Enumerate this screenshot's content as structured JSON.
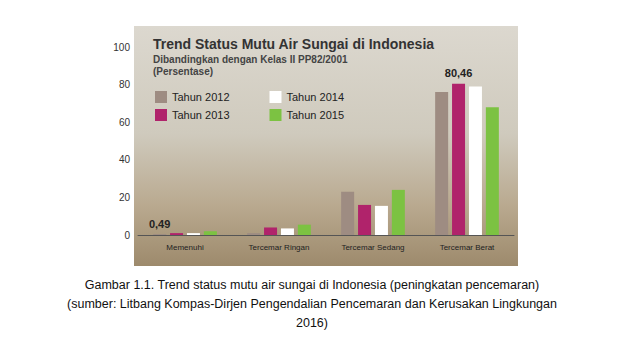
{
  "chart_data": {
    "type": "bar",
    "title": "Trend Status Mutu Air Sungai di Indonesia",
    "subtitle": [
      "Dibandingkan dengan Kelas II PP82/2001",
      "(Persentase)"
    ],
    "categories": [
      "Memenuhi",
      "Tercemar Ringan",
      "Tercemar Sedang",
      "Tercemar Berat"
    ],
    "series": [
      {
        "name": "Tahun 2012",
        "color": "#9e8c82",
        "values": [
          0.49,
          1,
          23,
          76
        ]
      },
      {
        "name": "Tahun 2013",
        "color": "#b0236b",
        "values": [
          1,
          4,
          16,
          80.46
        ]
      },
      {
        "name": "Tahun 2014",
        "color": "#ffffff",
        "values": [
          1,
          3.5,
          15.5,
          79
        ]
      },
      {
        "name": "Tahun 2015",
        "color": "#7cc242",
        "values": [
          2,
          5.5,
          24,
          68
        ]
      }
    ],
    "annotations": [
      {
        "label": "0,49",
        "value": 0.49,
        "series": "Tahun 2012",
        "category": "Memenuhi"
      },
      {
        "label": "80,46",
        "value": 80.46,
        "series": "Tahun 2013",
        "category": "Tercemar Berat"
      }
    ],
    "legend_rows": [
      [
        "Tahun 2012",
        "Tahun 2014"
      ],
      [
        "Tahun 2013",
        "Tahun 2015"
      ]
    ],
    "ylim": [
      0,
      100
    ],
    "yticks": [
      0,
      20,
      40,
      60,
      80,
      100
    ],
    "grid": false,
    "legend": "top-left",
    "caption": [
      "Gambar 1.1. Trend status mutu air sungai di Indonesia (peningkatan pencemaran)",
      "(sumber: Litbang Kompas-Dirjen Pengendalian Pencemaran dan Kerusakan Lingkungan",
      "2016)"
    ]
  }
}
